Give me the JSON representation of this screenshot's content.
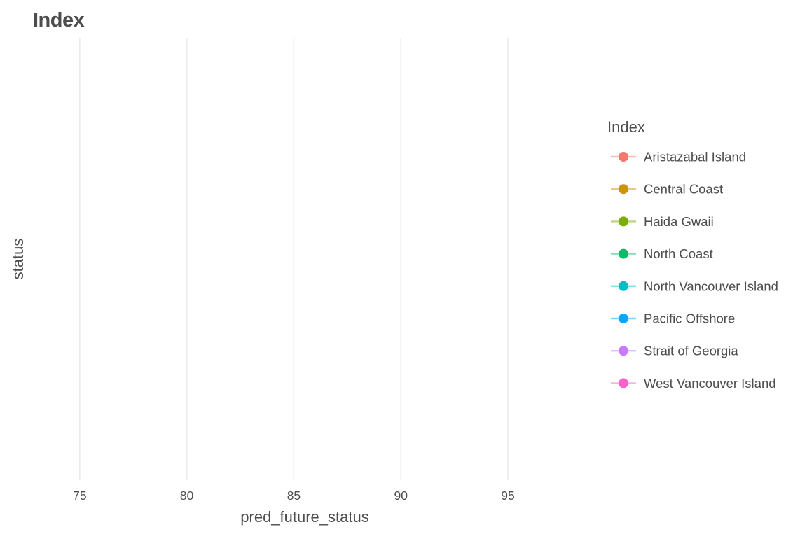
{
  "chart_data": {
    "type": "scatter",
    "title": "Index",
    "xlabel": "pred_future_status",
    "ylabel": "status",
    "xlim": [
      73.5,
      98.5
    ],
    "x_ticks": [
      75,
      80,
      85,
      90,
      95
    ],
    "x_tick_labels": [
      "75",
      "80",
      "85",
      "90",
      "95"
    ],
    "grid": "vertical",
    "legend_placement": "right",
    "legend": {
      "title": "Index",
      "entries": [
        {
          "name": "Aristazabal Island",
          "color": "#F8766D"
        },
        {
          "name": "Central Coast",
          "color": "#CD9600"
        },
        {
          "name": "Haida Gwaii",
          "color": "#7CAE00"
        },
        {
          "name": "North Coast",
          "color": "#00BE67"
        },
        {
          "name": "North Vancouver Island",
          "color": "#00BFC4"
        },
        {
          "name": "Pacific Offshore",
          "color": "#00A9FF"
        },
        {
          "name": "Strait of Georgia",
          "color": "#C77CFF"
        },
        {
          "name": "West Vancouver Island",
          "color": "#FF61CC"
        }
      ]
    },
    "series": []
  }
}
